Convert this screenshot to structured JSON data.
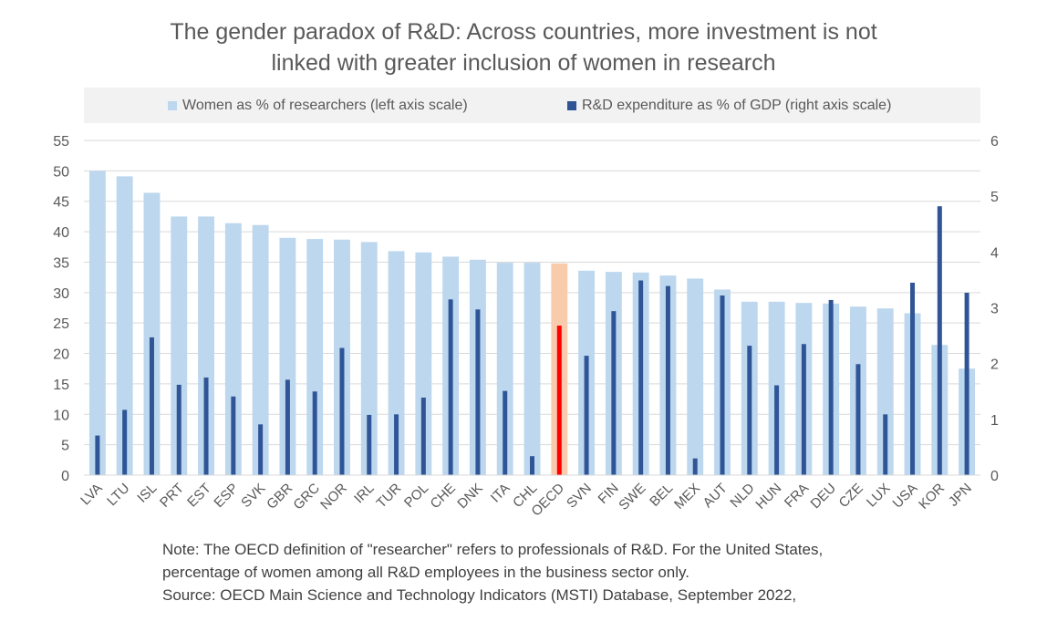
{
  "title": {
    "line1": "The gender paradox of R&D: Across countries, more investment is not",
    "line2": "linked with greater inclusion of women in research"
  },
  "legend": {
    "women_label": "Women as % of researchers (left axis scale)",
    "rd_label": "R&D expenditure as % of GDP (right axis scale)"
  },
  "colors": {
    "women": "#bdd7ee",
    "rd": "#2f5597",
    "oecd_women": "#f8cbad",
    "oecd_rd": "#ff0000",
    "grid": "#d9d9d9",
    "legend_bg": "#f2f2f2"
  },
  "chart_data": {
    "type": "bar",
    "categories": [
      "LVA",
      "LTU",
      "ISL",
      "PRT",
      "EST",
      "ESP",
      "SVK",
      "GBR",
      "GRC",
      "NOR",
      "IRL",
      "TUR",
      "POL",
      "CHE",
      "DNK",
      "ITA",
      "CHL",
      "OECD",
      "SVN",
      "FIN",
      "SWE",
      "BEL",
      "MEX",
      "AUT",
      "NLD",
      "HUN",
      "FRA",
      "DEU",
      "CZE",
      "LUX",
      "USA",
      "KOR",
      "JPN"
    ],
    "highlight_category": "OECD",
    "series": [
      {
        "name": "Women as % of researchers (left axis scale)",
        "axis": "left",
        "values": [
          50.0,
          49.1,
          46.4,
          42.5,
          42.5,
          41.4,
          41.1,
          39.0,
          38.8,
          38.7,
          38.3,
          36.8,
          36.6,
          35.9,
          35.4,
          34.9,
          34.9,
          34.8,
          33.6,
          33.4,
          33.3,
          32.8,
          32.3,
          30.5,
          28.5,
          28.5,
          28.3,
          28.2,
          27.7,
          27.4,
          26.6,
          21.4,
          17.5
        ]
      },
      {
        "name": "R&D expenditure as % of GDP (right axis scale)",
        "axis": "right",
        "values": [
          0.71,
          1.17,
          2.47,
          1.62,
          1.75,
          1.41,
          0.91,
          1.71,
          1.5,
          2.28,
          1.08,
          1.09,
          1.39,
          3.15,
          2.97,
          1.51,
          0.34,
          2.68,
          2.14,
          2.94,
          3.49,
          3.39,
          0.3,
          3.22,
          2.32,
          1.61,
          2.35,
          3.14,
          1.99,
          1.09,
          3.45,
          4.82,
          3.27
        ]
      }
    ],
    "left_axis": {
      "min": 0,
      "max": 55,
      "ticks": [
        "0",
        "5",
        "10",
        "15",
        "20",
        "25",
        "30",
        "35",
        "40",
        "45",
        "50",
        "55"
      ]
    },
    "right_axis": {
      "min": 0,
      "max": 6,
      "ticks": [
        "0",
        "1",
        "2",
        "3",
        "4",
        "5",
        "6"
      ]
    },
    "grid": true,
    "legend_position": "top"
  },
  "notes": {
    "line1": "Note: The OECD definition of \"researcher\"  refers to professionals of R&D. For the United States,",
    "line2": "percentage of women among all R&D employees in the business sector only.",
    "line3": "Source: OECD Main Science and Technology Indicators (MSTI) Database, September 2022,"
  }
}
